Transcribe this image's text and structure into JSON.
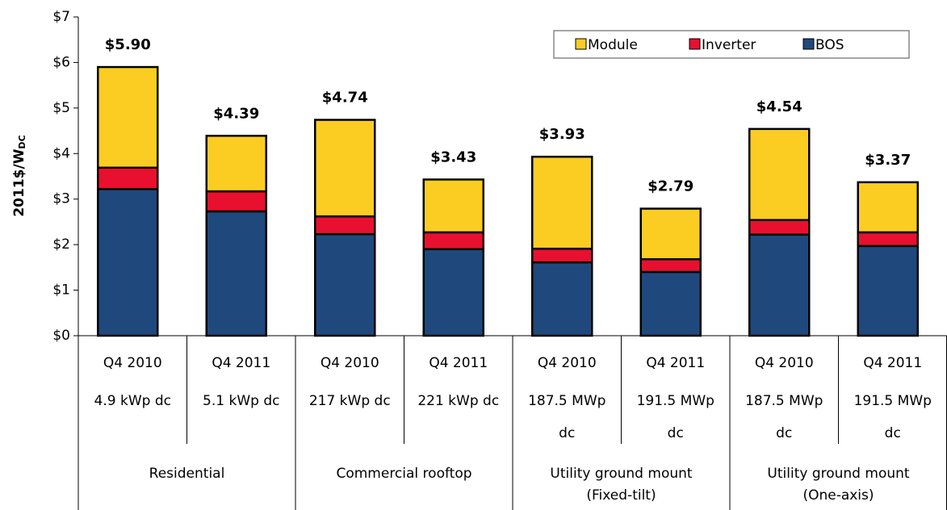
{
  "chart_data": {
    "type": "stacked_bar",
    "ylabel": "2011$/W",
    "ylabel_subscript": "DC",
    "categories": [
      "Q4 2010",
      "Q4 2011",
      "Q4 2010",
      "Q4 2011",
      "Q4 2010",
      "Q4 2011",
      "Q4 2010",
      "Q4 2011"
    ],
    "sizes": [
      [
        "4.9 kWp dc"
      ],
      [
        "5.1 kWp dc"
      ],
      [
        "217 kWp dc"
      ],
      [
        "221 kWp dc"
      ],
      [
        "187.5 MWp",
        "dc"
      ],
      [
        "191.5 MWp",
        "dc"
      ],
      [
        "187.5 MWp",
        "dc"
      ],
      [
        "191.5 MWp",
        "dc"
      ]
    ],
    "groups": [
      [
        "Residential"
      ],
      [
        "Commercial rooftop"
      ],
      [
        "Utility ground mount",
        "(Fixed-tilt)"
      ],
      [
        "Utility ground mount",
        "(One-axis)"
      ]
    ],
    "series": [
      {
        "name": "BOS",
        "color": "#1f497d",
        "values": [
          3.22,
          2.73,
          2.23,
          1.9,
          1.61,
          1.4,
          2.22,
          1.97
        ]
      },
      {
        "name": "Inverter",
        "color": "#e8102e",
        "values": [
          0.47,
          0.44,
          0.39,
          0.37,
          0.3,
          0.28,
          0.32,
          0.3
        ]
      },
      {
        "name": "Module",
        "color": "#fbcd22",
        "values": [
          2.21,
          1.22,
          2.12,
          1.16,
          2.02,
          1.11,
          2.0,
          1.1
        ]
      }
    ],
    "legend_order": [
      2,
      1,
      0
    ],
    "totals": [
      5.9,
      4.39,
      4.74,
      3.43,
      3.93,
      2.79,
      4.54,
      3.37
    ],
    "total_labels": [
      "$5.90",
      "$4.39",
      "$4.74",
      "$3.43",
      "$3.93",
      "$2.79",
      "$4.54",
      "$3.37"
    ],
    "ylim": [
      0,
      7
    ],
    "yticks": [
      {
        "value": 0,
        "label": "$0"
      },
      {
        "value": 1,
        "label": "$1"
      },
      {
        "value": 2,
        "label": "$2"
      },
      {
        "value": 3,
        "label": "$3"
      },
      {
        "value": 4,
        "label": "$4"
      },
      {
        "value": 5,
        "label": "$5"
      },
      {
        "value": 6,
        "label": "$6"
      },
      {
        "value": 7,
        "label": "$7"
      }
    ],
    "grid": false,
    "legend": "top-right"
  }
}
